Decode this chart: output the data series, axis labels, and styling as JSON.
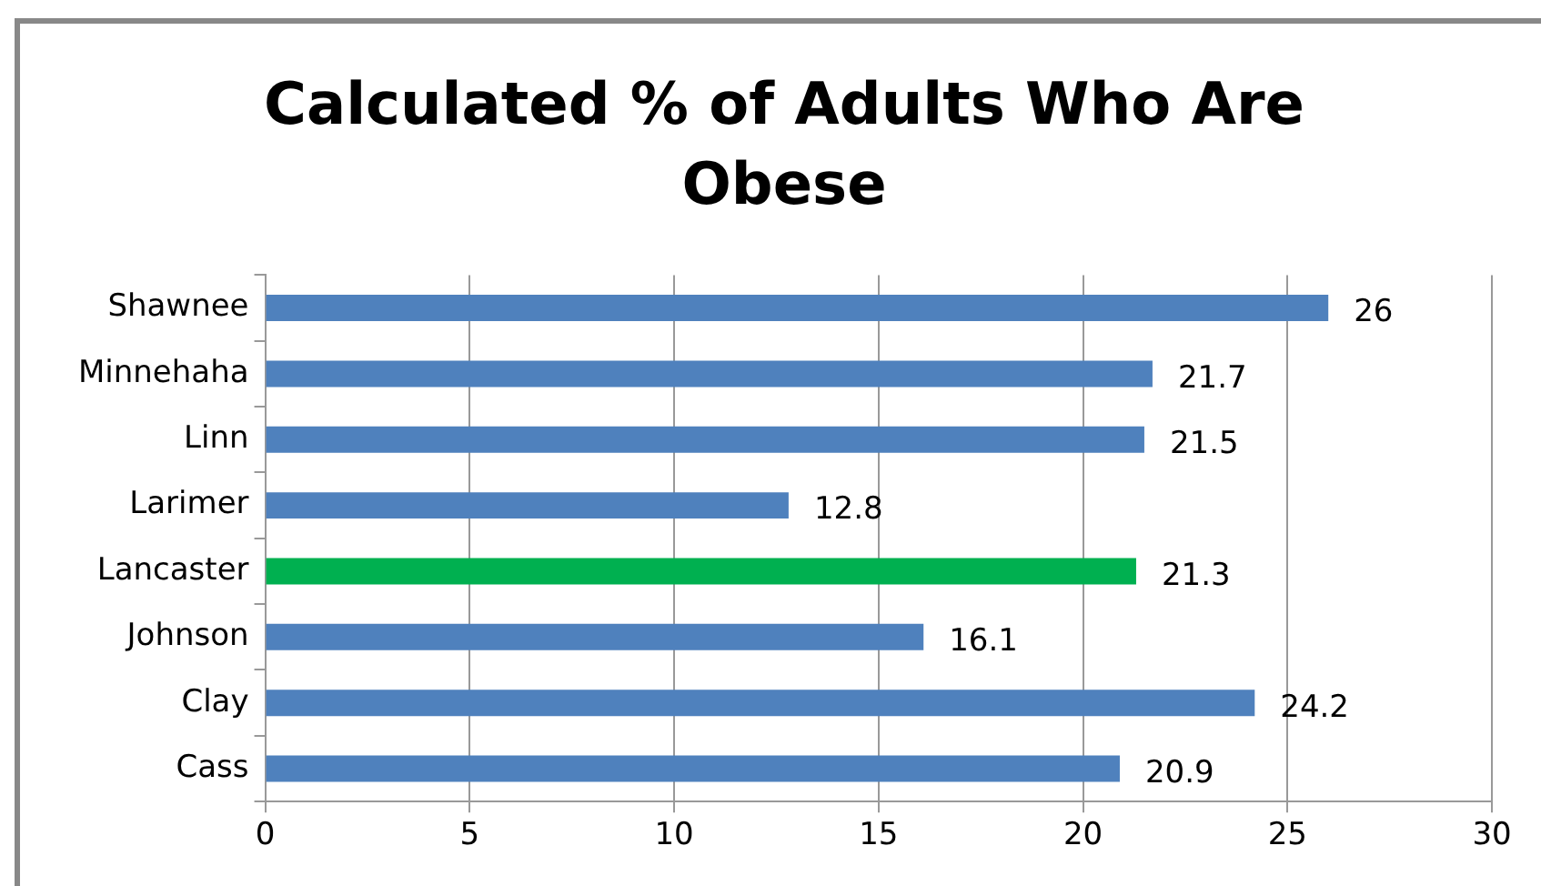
{
  "chart_data": {
    "type": "bar",
    "orientation": "horizontal",
    "title": "Calculated % of Adults Who Are Obese",
    "categories": [
      "Shawnee",
      "Minnehaha",
      "Linn",
      "Larimer",
      "Lancaster",
      "Johnson",
      "Clay",
      "Cass"
    ],
    "values": [
      26,
      21.7,
      21.5,
      12.8,
      21.3,
      16.1,
      24.2,
      20.9
    ],
    "colors": [
      "#4f81bd",
      "#4f81bd",
      "#4f81bd",
      "#4f81bd",
      "#00b050",
      "#4f81bd",
      "#4f81bd",
      "#4f81bd"
    ],
    "xlim": [
      0,
      30
    ],
    "xticks": [
      0,
      5,
      10,
      15,
      20,
      25,
      30
    ],
    "grid": "x",
    "data_labels": true,
    "legend": false
  }
}
